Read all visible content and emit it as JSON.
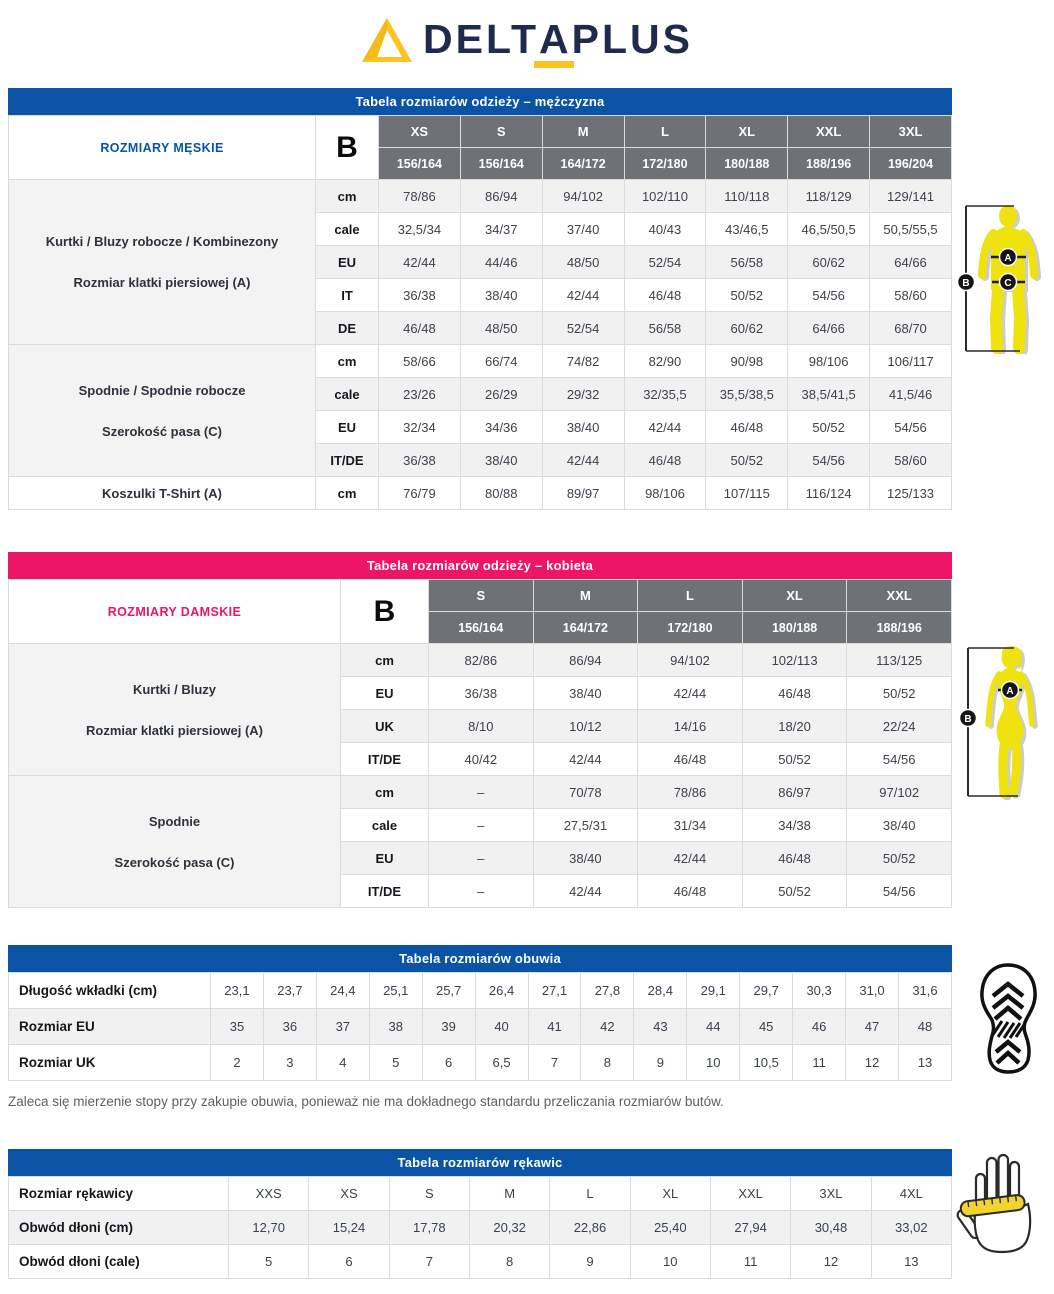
{
  "logo": {
    "prefix": "DELT",
    "a": "A",
    "suffix": "PLUS"
  },
  "colors": {
    "blue": "#0a53a5",
    "pink": "#ec1566",
    "header_gray": "#6e7277",
    "yellow": "#fdc325",
    "navy": "#1e2b4d",
    "stripe": "#f1f1f2",
    "figure_yellow": "#efe20e"
  },
  "icons": {
    "logo_triangle": "delta-triangle-logo",
    "men_figure": "male-body-measurement-figure",
    "women_figure": "female-body-measurement-figure",
    "shoe_figure": "shoe-sole-tread-icon",
    "glove_figure": "hand-measurement-icon"
  },
  "men_table": {
    "title": "Tabela rozmiarów odzieży – mężczyzna",
    "corner_label": "ROZMIARY MĘSKIE",
    "b_label": "B",
    "sizes": [
      "XS",
      "S",
      "M",
      "L",
      "XL",
      "XXL",
      "3XL"
    ],
    "heights": [
      "156/164",
      "156/164",
      "164/172",
      "172/180",
      "180/188",
      "188/196",
      "196/204"
    ],
    "sections": [
      {
        "label_lines": [
          "Kurtki / Bluzy robocze / Kombinezony",
          "Rozmiar klatki piersiowej (A)"
        ],
        "rows": [
          {
            "unit": "cm",
            "values": [
              "78/86",
              "86/94",
              "94/102",
              "102/110",
              "110/118",
              "118/129",
              "129/141"
            ]
          },
          {
            "unit": "cale",
            "values": [
              "32,5/34",
              "34/37",
              "37/40",
              "40/43",
              "43/46,5",
              "46,5/50,5",
              "50,5/55,5"
            ]
          },
          {
            "unit": "EU",
            "values": [
              "42/44",
              "44/46",
              "48/50",
              "52/54",
              "56/58",
              "60/62",
              "64/66"
            ]
          },
          {
            "unit": "IT",
            "values": [
              "36/38",
              "38/40",
              "42/44",
              "46/48",
              "50/52",
              "54/56",
              "58/60"
            ]
          },
          {
            "unit": "DE",
            "values": [
              "46/48",
              "48/50",
              "52/54",
              "56/58",
              "60/62",
              "64/66",
              "68/70"
            ]
          }
        ]
      },
      {
        "label_lines": [
          "Spodnie / Spodnie robocze",
          "Szerokość pasa (C)"
        ],
        "rows": [
          {
            "unit": "cm",
            "values": [
              "58/66",
              "66/74",
              "74/82",
              "82/90",
              "90/98",
              "98/106",
              "106/117"
            ]
          },
          {
            "unit": "cale",
            "values": [
              "23/26",
              "26/29",
              "29/32",
              "32/35,5",
              "35,5/38,5",
              "38,5/41,5",
              "41,5/46"
            ]
          },
          {
            "unit": "EU",
            "values": [
              "32/34",
              "34/36",
              "38/40",
              "42/44",
              "46/48",
              "50/52",
              "54/56"
            ]
          },
          {
            "unit": "IT/DE",
            "values": [
              "36/38",
              "38/40",
              "42/44",
              "46/48",
              "50/52",
              "54/56",
              "58/60"
            ]
          }
        ]
      },
      {
        "label_lines": [
          "Koszulki T-Shirt (A)"
        ],
        "rows": [
          {
            "unit": "cm",
            "values": [
              "76/79",
              "80/88",
              "89/97",
              "98/106",
              "107/115",
              "116/124",
              "125/133"
            ]
          }
        ]
      }
    ]
  },
  "women_table": {
    "title": "Tabela rozmiarów odzieży – kobieta",
    "corner_label": "ROZMIARY DAMSKIE",
    "b_label": "B",
    "sizes": [
      "S",
      "M",
      "L",
      "XL",
      "XXL"
    ],
    "heights": [
      "156/164",
      "164/172",
      "172/180",
      "180/188",
      "188/196"
    ],
    "sections": [
      {
        "label_lines": [
          "Kurtki / Bluzy",
          "Rozmiar klatki piersiowej (A)"
        ],
        "rows": [
          {
            "unit": "cm",
            "values": [
              "82/86",
              "86/94",
              "94/102",
              "102/113",
              "113/125"
            ]
          },
          {
            "unit": "EU",
            "values": [
              "36/38",
              "38/40",
              "42/44",
              "46/48",
              "50/52"
            ]
          },
          {
            "unit": "UK",
            "values": [
              "8/10",
              "10/12",
              "14/16",
              "18/20",
              "22/24"
            ]
          },
          {
            "unit": "IT/DE",
            "values": [
              "40/42",
              "42/44",
              "46/48",
              "50/52",
              "54/56"
            ]
          }
        ]
      },
      {
        "label_lines": [
          "Spodnie",
          "Szerokość pasa (C)"
        ],
        "rows": [
          {
            "unit": "cm",
            "values": [
              "–",
              "70/78",
              "78/86",
              "86/97",
              "97/102"
            ]
          },
          {
            "unit": "cale",
            "values": [
              "–",
              "27,5/31",
              "31/34",
              "34/38",
              "38/40"
            ]
          },
          {
            "unit": "EU",
            "values": [
              "–",
              "38/40",
              "42/44",
              "46/48",
              "50/52"
            ]
          },
          {
            "unit": "IT/DE",
            "values": [
              "–",
              "42/44",
              "46/48",
              "50/52",
              "54/56"
            ]
          }
        ]
      }
    ]
  },
  "shoe_table": {
    "title": "Tabela rozmiarów obuwia",
    "rows": [
      {
        "label": "Długość wkładki (cm)",
        "values": [
          "23,1",
          "23,7",
          "24,4",
          "25,1",
          "25,7",
          "26,4",
          "27,1",
          "27,8",
          "28,4",
          "29,1",
          "29,7",
          "30,3",
          "31,0",
          "31,6"
        ]
      },
      {
        "label": "Rozmiar EU",
        "values": [
          "35",
          "36",
          "37",
          "38",
          "39",
          "40",
          "41",
          "42",
          "43",
          "44",
          "45",
          "46",
          "47",
          "48"
        ]
      },
      {
        "label": "Rozmiar UK",
        "values": [
          "2",
          "3",
          "4",
          "5",
          "6",
          "6,5",
          "7",
          "8",
          "9",
          "10",
          "10,5",
          "11",
          "12",
          "13"
        ]
      }
    ]
  },
  "shoe_note": "Zaleca się mierzenie stopy przy zakupie obuwia, ponieważ nie ma dokładnego standardu przeliczania rozmiarów butów.",
  "glove_table": {
    "title": "Tabela rozmiarów rękawic",
    "rows": [
      {
        "label": "Rozmiar rękawicy",
        "values": [
          "XXS",
          "XS",
          "S",
          "M",
          "L",
          "XL",
          "XXL",
          "3XL",
          "4XL"
        ]
      },
      {
        "label": "Obwód dłoni (cm)",
        "values": [
          "12,70",
          "15,24",
          "17,78",
          "20,32",
          "22,86",
          "25,40",
          "27,94",
          "30,48",
          "33,02"
        ]
      },
      {
        "label": "Obwód dłoni (cale)",
        "values": [
          "5",
          "6",
          "7",
          "8",
          "9",
          "10",
          "11",
          "12",
          "13"
        ]
      }
    ]
  }
}
